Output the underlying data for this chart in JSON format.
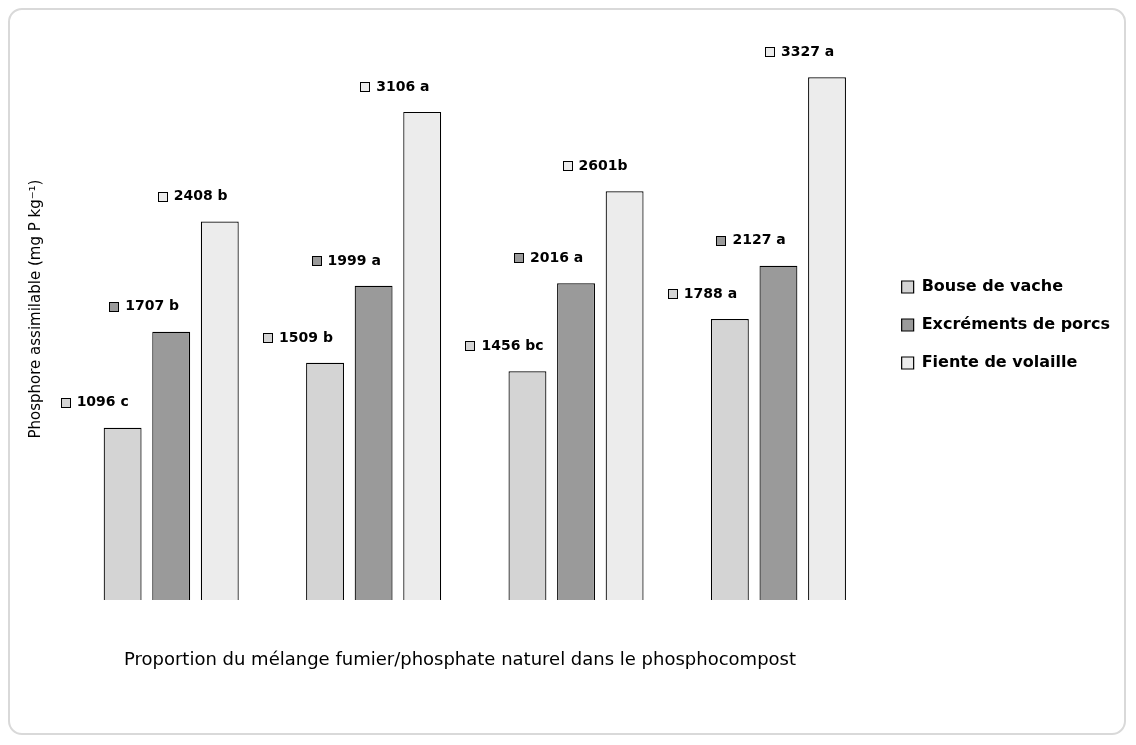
{
  "chart_data": {
    "type": "bar",
    "xlabel": "Proportion du mélange fumier/phosphate naturel dans le phosphocompost",
    "ylabel": "Phosphore assimilable (mg P kg⁻¹)",
    "categories": [
      null,
      null,
      null,
      null
    ],
    "series": [
      {
        "name": "Bouse de vache",
        "color": "#d4d4d4",
        "values": [
          1096,
          1509,
          1456,
          1788
        ],
        "value_labels": [
          "1096 c",
          "1509 b",
          "1456 bc",
          "1788 a"
        ]
      },
      {
        "name": "Excréments de porcs",
        "color": "#9a9a9a",
        "values": [
          1707,
          1999,
          2016,
          2127
        ],
        "value_labels": [
          "1707 b",
          "1999 a",
          "2016 a",
          "2127 a"
        ]
      },
      {
        "name": "Fiente de volaille",
        "color": "#ececec",
        "values": [
          2408,
          3106,
          2601,
          3327
        ],
        "value_labels": [
          "2408 b",
          "3106 a",
          "2601b",
          "3327 a"
        ]
      }
    ],
    "legend": "right",
    "tick_labels": false
  }
}
